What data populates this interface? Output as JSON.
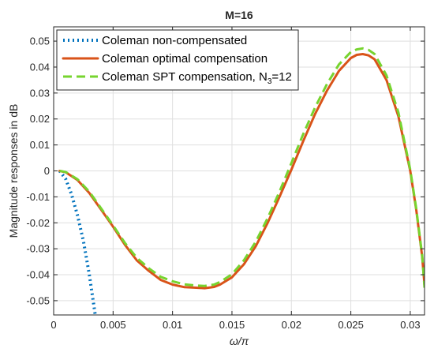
{
  "chart_data": {
    "type": "line",
    "title": "M=16",
    "xlabel": "ω/π",
    "ylabel": "Magnitude responses in dB",
    "xlim": [
      0,
      0.0312
    ],
    "ylim": [
      -0.0555,
      0.0555
    ],
    "xticks": [
      0,
      0.005,
      0.01,
      0.015,
      0.02,
      0.025,
      0.03
    ],
    "xtick_labels": [
      "0",
      "0.005",
      "0.01",
      "0.015",
      "0.02",
      "0.025",
      "0.03"
    ],
    "yticks": [
      -0.05,
      -0.04,
      -0.03,
      -0.02,
      -0.01,
      0,
      0.01,
      0.02,
      0.03,
      0.04,
      0.05
    ],
    "ytick_labels": [
      "-0.05",
      "-0.04",
      "-0.03",
      "-0.02",
      "-0.01",
      "0",
      "0.01",
      "0.02",
      "0.03",
      "0.04",
      "0.05"
    ],
    "grid": true,
    "legend_position": "top-left",
    "series": [
      {
        "name": "Coleman non-compensated",
        "color": "#0072BD",
        "style": "dotted",
        "x": [
          0.0005,
          0.001,
          0.0015,
          0.002,
          0.0025,
          0.003,
          0.0035
        ],
        "y": [
          0,
          -0.003,
          -0.009,
          -0.017,
          -0.027,
          -0.04,
          -0.0555
        ]
      },
      {
        "name": "Coleman optimal compensation",
        "color": "#D95319",
        "style": "solid",
        "x": [
          0.0005,
          0.001,
          0.002,
          0.003,
          0.004,
          0.005,
          0.006,
          0.007,
          0.008,
          0.009,
          0.01,
          0.011,
          0.012,
          0.0127,
          0.0135,
          0.014,
          0.015,
          0.016,
          0.017,
          0.018,
          0.019,
          0.02,
          0.021,
          0.022,
          0.023,
          0.024,
          0.025,
          0.0255,
          0.026,
          0.0265,
          0.027,
          0.028,
          0.029,
          0.03,
          0.0305,
          0.031,
          0.0312
        ],
        "y": [
          0,
          -0.0005,
          -0.0035,
          -0.0085,
          -0.015,
          -0.0215,
          -0.0285,
          -0.0345,
          -0.0385,
          -0.042,
          -0.0438,
          -0.0448,
          -0.045,
          -0.0452,
          -0.0447,
          -0.0438,
          -0.041,
          -0.036,
          -0.029,
          -0.02,
          -0.01,
          0.0005,
          0.0115,
          0.022,
          0.031,
          0.0385,
          0.0435,
          0.0447,
          0.045,
          0.0445,
          0.043,
          0.035,
          0.021,
          0.0,
          -0.015,
          -0.033,
          -0.044
        ]
      },
      {
        "name": "Coleman SPT compensation, N",
        "name_subscript": "3",
        "name_suffix": "=12",
        "color": "#77D42F",
        "style": "dashed",
        "x": [
          0.0005,
          0.001,
          0.002,
          0.003,
          0.004,
          0.005,
          0.006,
          0.007,
          0.008,
          0.009,
          0.01,
          0.011,
          0.012,
          0.0127,
          0.0135,
          0.014,
          0.015,
          0.016,
          0.017,
          0.018,
          0.019,
          0.02,
          0.021,
          0.022,
          0.023,
          0.024,
          0.025,
          0.0255,
          0.026,
          0.0265,
          0.027,
          0.028,
          0.029,
          0.03,
          0.0305,
          0.031,
          0.0312
        ],
        "y": [
          0,
          -0.0004,
          -0.0032,
          -0.008,
          -0.0145,
          -0.021,
          -0.0278,
          -0.0335,
          -0.0375,
          -0.0408,
          -0.0425,
          -0.0437,
          -0.0442,
          -0.0443,
          -0.0438,
          -0.0428,
          -0.0398,
          -0.0345,
          -0.0273,
          -0.0182,
          -0.008,
          0.003,
          0.0142,
          0.0245,
          0.0335,
          0.041,
          0.0458,
          0.0468,
          0.0472,
          0.0466,
          0.045,
          0.0368,
          0.0225,
          0.0005,
          -0.0145,
          -0.0325,
          -0.045
        ]
      }
    ]
  }
}
